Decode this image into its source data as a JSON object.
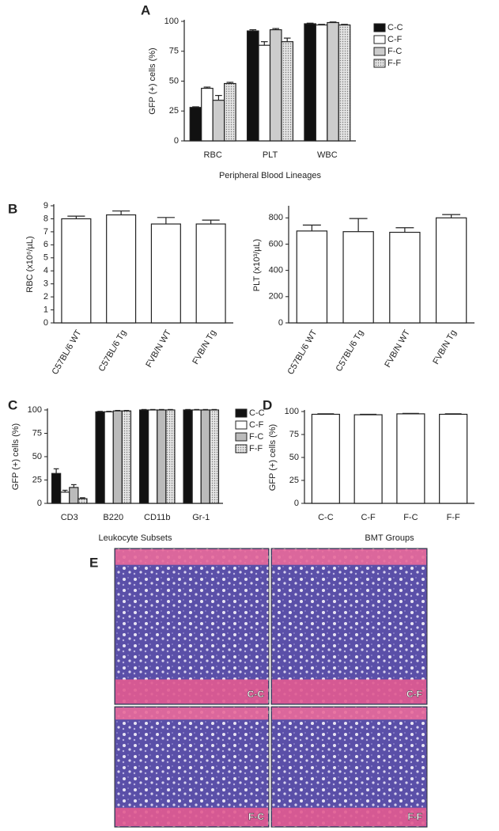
{
  "chart_data": [
    {
      "type": "bar",
      "panel": "A",
      "y_label": "GFP (+) cells (%)",
      "x_label": "Peripheral Blood Lineages",
      "categories": [
        "RBC",
        "PLT",
        "WBC"
      ],
      "series": [
        {
          "name": "C-C",
          "color": "#111111",
          "values": [
            28,
            92,
            98
          ],
          "errors": [
            0.5,
            1,
            0.5
          ]
        },
        {
          "name": "C-F",
          "color": "#ffffff",
          "values": [
            44,
            80,
            97
          ],
          "errors": [
            1,
            3,
            0.5
          ]
        },
        {
          "name": "F-C",
          "color": "#cccccc",
          "values": [
            34,
            93,
            99
          ],
          "errors": [
            4,
            1,
            0.5
          ]
        },
        {
          "name": "F-F",
          "color": "#dddddd",
          "pattern": "dots",
          "values": [
            48,
            83,
            97
          ],
          "errors": [
            1,
            3,
            0.5
          ]
        }
      ],
      "ylim": [
        0,
        100
      ],
      "yticks": [
        0,
        25,
        50,
        75,
        100
      ],
      "legend": "right"
    },
    {
      "type": "bar",
      "panel": "B",
      "y_label": "RBC (x10⁶/µL)",
      "categories": [
        "C57BL/6 WT",
        "C57BL/6 Tg",
        "FVB/N WT",
        "FVB/N Tg"
      ],
      "values": [
        8.0,
        8.3,
        7.6,
        7.6
      ],
      "errors": [
        0.2,
        0.3,
        0.5,
        0.3
      ],
      "color": "#ffffff",
      "ylim": [
        0,
        9
      ],
      "yticks": [
        0,
        1,
        2,
        3,
        4,
        5,
        6,
        7,
        8,
        9
      ]
    },
    {
      "type": "bar",
      "y_label": "PLT (x10³/µL)",
      "categories": [
        "C57BL/6 WT",
        "C57BL/6 Tg",
        "FVB/N WT",
        "FVB/N Tg"
      ],
      "values": [
        700,
        695,
        690,
        800
      ],
      "errors": [
        45,
        100,
        35,
        25
      ],
      "color": "#ffffff",
      "ylim": [
        0,
        880
      ],
      "yticks": [
        0,
        200,
        400,
        600,
        800
      ]
    },
    {
      "type": "bar",
      "panel": "C",
      "y_label": "GFP (+) cells (%)",
      "x_label": "Leukocyte Subsets",
      "categories": [
        "CD3",
        "B220",
        "CD11b",
        "Gr-1"
      ],
      "series": [
        {
          "name": "C-C",
          "color": "#111111",
          "values": [
            32,
            98,
            100,
            100
          ],
          "errors": [
            5,
            0.5,
            0.5,
            0.5
          ]
        },
        {
          "name": "C-F",
          "color": "#ffffff",
          "values": [
            12,
            98,
            100,
            100
          ],
          "errors": [
            2,
            0.5,
            0.5,
            0.5
          ]
        },
        {
          "name": "F-C",
          "color": "#bbbbbb",
          "values": [
            17,
            99,
            100,
            100
          ],
          "errors": [
            3,
            0.5,
            0.5,
            0.5
          ]
        },
        {
          "name": "F-F",
          "color": "#dddddd",
          "pattern": "dots",
          "values": [
            5,
            99,
            100,
            100
          ],
          "errors": [
            1,
            0.5,
            0.5,
            0.5
          ]
        }
      ],
      "ylim": [
        0,
        100
      ],
      "yticks": [
        0,
        25,
        50,
        75,
        100
      ],
      "legend": "right"
    },
    {
      "type": "bar",
      "panel": "D",
      "y_label": "GFP (+) cells (%)",
      "x_label": "BMT Groups",
      "categories": [
        "C-C",
        "C-F",
        "F-C",
        "F-F"
      ],
      "values": [
        97,
        96.5,
        97.5,
        97
      ],
      "errors": [
        0.5,
        0.5,
        0.5,
        0.5
      ],
      "color": "#ffffff",
      "ylim": [
        0,
        100
      ],
      "yticks": [
        0,
        25,
        50,
        75,
        100
      ]
    }
  ],
  "figure_e": {
    "panel": "E",
    "images": [
      "C-C",
      "C-F",
      "F-C",
      "F-F"
    ]
  }
}
